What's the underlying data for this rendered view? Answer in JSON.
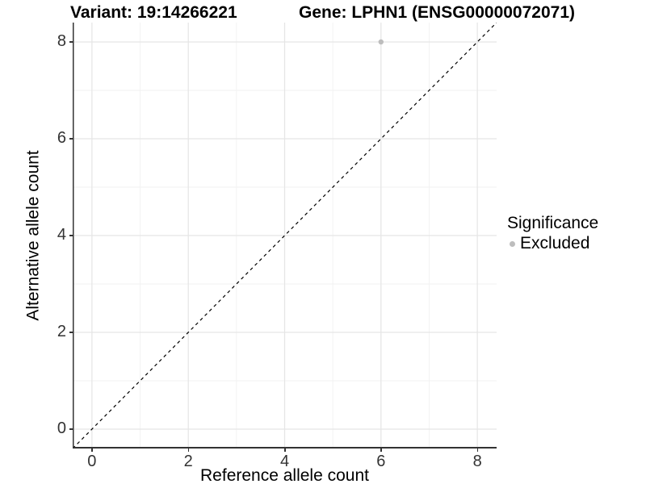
{
  "titles": {
    "variant": "Variant: 19:14266221",
    "gene": "Gene: LPHN1 (ENSG00000072071)"
  },
  "axes": {
    "x_label": "Reference allele count",
    "y_label": "Alternative allele count"
  },
  "legend": {
    "title": "Significance",
    "items": [
      {
        "label": "Excluded",
        "color": "#bdbdbd"
      }
    ]
  },
  "colors": {
    "axis_line": "#333333",
    "tick_mark": "#333333",
    "tick_label": "#333333",
    "grid_major": "#e5e5e5",
    "grid_minor": "#f2f2f2",
    "reference_line": "#000000",
    "point": "#bdbdbd",
    "background": "#ffffff"
  },
  "chart_data": {
    "type": "scatter",
    "title": "Variant: 19:14266221 | Gene: LPHN1 (ENSG00000072071)",
    "xlabel": "Reference allele count",
    "ylabel": "Alternative allele count",
    "xlim": [
      -0.4,
      8.4
    ],
    "ylim": [
      -0.4,
      8.4
    ],
    "x_ticks": [
      0,
      2,
      4,
      6,
      8
    ],
    "y_ticks": [
      0,
      2,
      4,
      6,
      8
    ],
    "x_minor_ticks": [
      1,
      3,
      5,
      7
    ],
    "y_minor_ticks": [
      1,
      3,
      5,
      7
    ],
    "grid": true,
    "legend_position": "right",
    "series": [
      {
        "name": "Excluded",
        "color": "#bdbdbd",
        "points": [
          {
            "x": 6,
            "y": 8
          }
        ]
      }
    ],
    "reference_line": {
      "type": "identity",
      "style": "dashed",
      "from": [
        -0.4,
        -0.4
      ],
      "to": [
        8.4,
        8.4
      ]
    }
  }
}
